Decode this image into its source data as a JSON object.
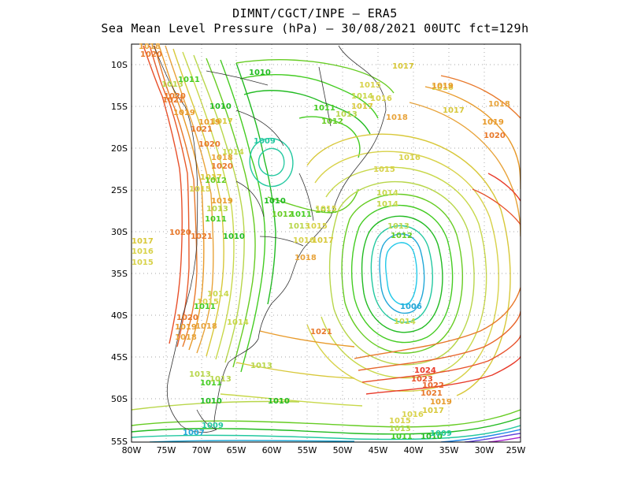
{
  "title_line1": "DIMNT/CGCT/INPE  –   ERA5",
  "title_line2": "Sea Mean Level Pressure (hPa) – 30/08/2021 00UTC fct=129h",
  "lat_labels": [
    "10S",
    "15S",
    "20S",
    "25S",
    "30S",
    "35S",
    "40S",
    "45S",
    "50S",
    "55S"
  ],
  "lon_labels": [
    "80W",
    "75W",
    "70W",
    "65W",
    "60W",
    "55W",
    "50W",
    "45W",
    "40W",
    "35W",
    "30W",
    "25W"
  ],
  "contour_labels": [
    {
      "t": "1018",
      "c": "#e8a33a"
    },
    {
      "t": "1020",
      "c": "#e8782a"
    },
    {
      "t": "1013",
      "c": "#b8d64a"
    },
    {
      "t": "1021",
      "c": "#e8782a"
    },
    {
      "t": "1019",
      "c": "#e89a2a"
    },
    {
      "t": "1010",
      "c": "#22bb22"
    },
    {
      "t": "1017",
      "c": "#d8c83a"
    },
    {
      "t": "1021",
      "c": "#e8782a"
    },
    {
      "t": "1020",
      "c": "#e8782a"
    },
    {
      "t": "1018",
      "c": "#e8a33a"
    },
    {
      "t": "1020",
      "c": "#e8782a"
    },
    {
      "t": "1014",
      "c": "#c8d84a"
    },
    {
      "t": "1017",
      "c": "#d8c83a"
    },
    {
      "t": "1015",
      "c": "#d8d24a"
    },
    {
      "t": "1019",
      "c": "#e89a2a"
    },
    {
      "t": "1013",
      "c": "#b8d64a"
    },
    {
      "t": "1011",
      "c": "#44cc22"
    },
    {
      "t": "1020",
      "c": "#e8782a"
    },
    {
      "t": "1021",
      "c": "#e8782a"
    },
    {
      "t": "1010",
      "c": "#22bb22"
    },
    {
      "t": "1014",
      "c": "#c8d84a"
    },
    {
      "t": "1015",
      "c": "#d8d24a"
    },
    {
      "t": "1020",
      "c": "#e8782a"
    },
    {
      "t": "1019",
      "c": "#e89a2a"
    },
    {
      "t": "1018",
      "c": "#e8a33a"
    },
    {
      "t": "1013",
      "c": "#b8d64a"
    },
    {
      "t": "1011",
      "c": "#44cc22"
    },
    {
      "t": "1010",
      "c": "#22bb22"
    },
    {
      "t": "1009",
      "c": "#22c8a0"
    },
    {
      "t": "1007",
      "c": "#22a8d8"
    },
    {
      "t": "1010",
      "c": "#22bb22"
    },
    {
      "t": "1009",
      "c": "#22c8a0"
    },
    {
      "t": "1011",
      "c": "#44cc22"
    },
    {
      "t": "1012",
      "c": "#66cc22"
    },
    {
      "t": "1013",
      "c": "#b8d64a"
    },
    {
      "t": "1014",
      "c": "#c8d84a"
    },
    {
      "t": "1015",
      "c": "#d8d24a"
    },
    {
      "t": "1017",
      "c": "#d8c83a"
    },
    {
      "t": "1018",
      "c": "#e8a33a"
    },
    {
      "t": "1019",
      "c": "#e89a2a"
    },
    {
      "t": "1020",
      "c": "#e8782a"
    },
    {
      "t": "1021",
      "c": "#e8782a"
    },
    {
      "t": "1013",
      "c": "#b8d64a"
    },
    {
      "t": "1014",
      "c": "#c8d84a"
    },
    {
      "t": "1010",
      "c": "#22bb22"
    },
    {
      "t": "1011",
      "c": "#44cc22"
    },
    {
      "t": "1012",
      "c": "#66cc22"
    },
    {
      "t": "1013",
      "c": "#b8d64a"
    },
    {
      "t": "1015",
      "c": "#d8d24a"
    },
    {
      "t": "1016",
      "c": "#d8d24a"
    },
    {
      "t": "1018",
      "c": "#e8a33a"
    },
    {
      "t": "1017",
      "c": "#d8c83a"
    },
    {
      "t": "1016",
      "c": "#d8d24a"
    },
    {
      "t": "1015",
      "c": "#d8d24a"
    },
    {
      "t": "1014",
      "c": "#c8d84a"
    },
    {
      "t": "1014",
      "c": "#c8d84a"
    },
    {
      "t": "1013",
      "c": "#b8d64a"
    },
    {
      "t": "1012",
      "c": "#66cc22"
    },
    {
      "t": "1006",
      "c": "#22a8d8"
    },
    {
      "t": "1014",
      "c": "#c8d84a"
    },
    {
      "t": "1024",
      "c": "#e83a2a"
    },
    {
      "t": "1023",
      "c": "#e8502a"
    },
    {
      "t": "1022",
      "c": "#e8642a"
    },
    {
      "t": "1021",
      "c": "#e8782a"
    },
    {
      "t": "1019",
      "c": "#e89a2a"
    },
    {
      "t": "1017",
      "c": "#d8c83a"
    },
    {
      "t": "1016",
      "c": "#d8d24a"
    },
    {
      "t": "1015",
      "c": "#d8d24a"
    },
    {
      "t": "1013",
      "c": "#b8d64a"
    },
    {
      "t": "1011",
      "c": "#44cc22"
    },
    {
      "t": "1010",
      "c": "#22bb22"
    },
    {
      "t": "1009",
      "c": "#22c8a0"
    },
    {
      "t": "1016",
      "c": "#d8d24a"
    },
    {
      "t": "1017",
      "c": "#d8c83a"
    },
    {
      "t": "1018",
      "c": "#e8a33a"
    },
    {
      "t": "1019",
      "c": "#e89a2a"
    },
    {
      "t": "1020",
      "c": "#e8782a"
    },
    {
      "t": "1017",
      "c": "#d8c83a"
    },
    {
      "t": "1016",
      "c": "#d8d24a"
    },
    {
      "t": "1015",
      "c": "#d8d24a"
    },
    {
      "t": "1013",
      "c": "#b8d64a"
    },
    {
      "t": "1012",
      "c": "#66cc22"
    },
    {
      "t": "1010",
      "c": "#22bb22"
    },
    {
      "t": "1011",
      "c": "#44cc22"
    },
    {
      "t": "1012",
      "c": "#66cc22"
    },
    {
      "t": "1011",
      "c": "#44cc22"
    },
    {
      "t": "1018",
      "c": "#e8a33a"
    },
    {
      "t": "1019",
      "c": "#e89a2a"
    },
    {
      "t": "1017",
      "c": "#d8c83a"
    },
    {
      "t": "1016",
      "c": "#d8d24a"
    },
    {
      "t": "1015",
      "c": "#d8d24a"
    },
    {
      "t": "1014",
      "c": "#c8d84a"
    },
    {
      "t": "1018",
      "c": "#e8a33a"
    }
  ]
}
